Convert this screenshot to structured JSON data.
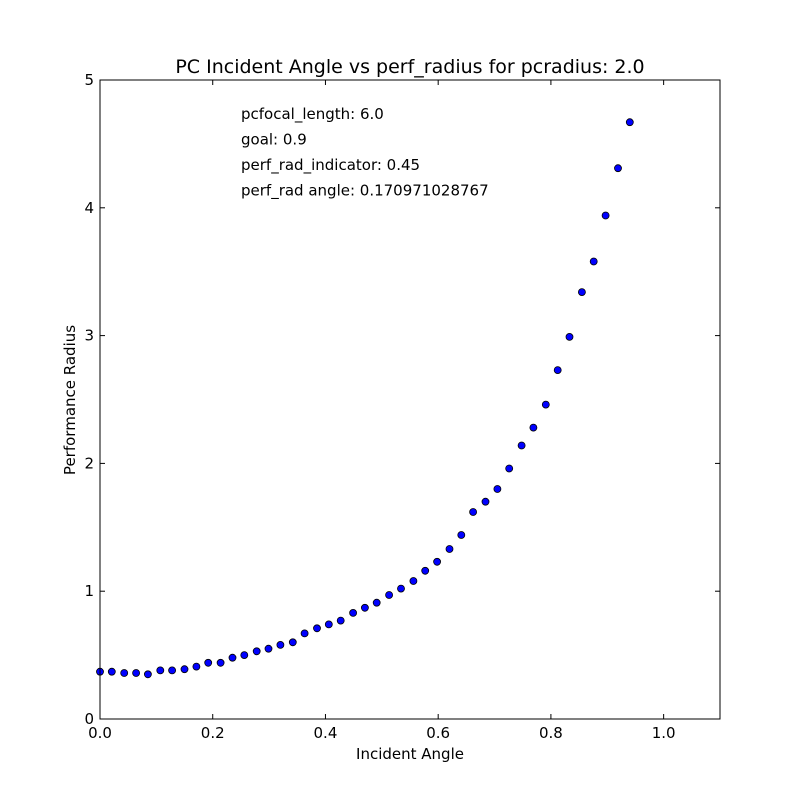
{
  "chart_data": {
    "type": "scatter",
    "title": "PC Incident Angle vs perf_radius for pcradius: 2.0",
    "xlabel": "Incident Angle",
    "ylabel": "Performance Radius",
    "xlim": [
      0.0,
      1.1
    ],
    "ylim": [
      0,
      5
    ],
    "x_ticks": [
      "0.0",
      "0.2",
      "0.4",
      "0.6",
      "0.8",
      "1.0"
    ],
    "y_ticks": [
      "0",
      "1",
      "2",
      "3",
      "4",
      "5"
    ],
    "grid": false,
    "legend": "none",
    "marker_color": "#0000ff",
    "annotations": [
      "pcfocal_length: 6.0",
      "goal: 0.9",
      "perf_rad_indicator: 0.45",
      "perf_rad angle: 0.170971028767"
    ],
    "series": [
      {
        "points": [
          [
            0.0,
            0.37
          ],
          [
            0.021,
            0.37
          ],
          [
            0.043,
            0.36
          ],
          [
            0.064,
            0.36
          ],
          [
            0.085,
            0.35
          ],
          [
            0.107,
            0.38
          ],
          [
            0.128,
            0.38
          ],
          [
            0.15,
            0.39
          ],
          [
            0.171,
            0.41
          ],
          [
            0.192,
            0.44
          ],
          [
            0.214,
            0.44
          ],
          [
            0.235,
            0.48
          ],
          [
            0.256,
            0.5
          ],
          [
            0.278,
            0.53
          ],
          [
            0.299,
            0.55
          ],
          [
            0.32,
            0.58
          ],
          [
            0.342,
            0.6
          ],
          [
            0.363,
            0.67
          ],
          [
            0.385,
            0.71
          ],
          [
            0.406,
            0.74
          ],
          [
            0.427,
            0.77
          ],
          [
            0.449,
            0.83
          ],
          [
            0.47,
            0.87
          ],
          [
            0.491,
            0.91
          ],
          [
            0.513,
            0.97
          ],
          [
            0.534,
            1.02
          ],
          [
            0.556,
            1.08
          ],
          [
            0.577,
            1.16
          ],
          [
            0.598,
            1.23
          ],
          [
            0.62,
            1.33
          ],
          [
            0.641,
            1.44
          ],
          [
            0.662,
            1.62
          ],
          [
            0.684,
            1.7
          ],
          [
            0.705,
            1.8
          ],
          [
            0.726,
            1.96
          ],
          [
            0.748,
            2.14
          ],
          [
            0.769,
            2.28
          ],
          [
            0.791,
            2.46
          ],
          [
            0.812,
            2.73
          ],
          [
            0.833,
            2.99
          ],
          [
            0.855,
            3.34
          ],
          [
            0.876,
            3.58
          ],
          [
            0.897,
            3.94
          ],
          [
            0.919,
            4.31
          ],
          [
            0.94,
            4.67
          ]
        ]
      }
    ]
  }
}
